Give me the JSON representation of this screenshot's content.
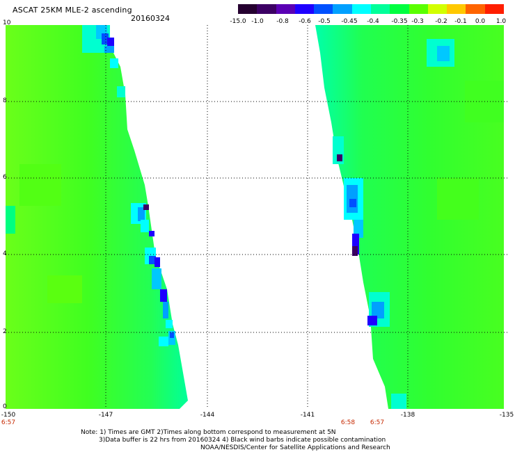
{
  "header": {
    "title": "ASCAT 25KM MLE-2 ascending",
    "date": "20160324"
  },
  "colorbar": {
    "labels": [
      "-15.0",
      "-1.0",
      "-0.8",
      "-0.6",
      "-0.5",
      "-0.45",
      "-0.4",
      "-0.35",
      "-0.3",
      "-0.2",
      "-0.1",
      "0.0",
      "1.0"
    ],
    "colors": [
      "#250030",
      "#3c0064",
      "#5a00b4",
      "#1e00ff",
      "#0050ff",
      "#00a0ff",
      "#00ffff",
      "#00ff9a",
      "#00ff40",
      "#5aff00",
      "#d2ff00",
      "#ffc800",
      "#ff6400",
      "#ff1e00"
    ]
  },
  "map": {
    "lat_labels": [
      "10",
      "8",
      "6",
      "4",
      "2",
      "0"
    ],
    "lon_labels": [
      "-150",
      "-147",
      "-144",
      "-141",
      "-138",
      "-135"
    ],
    "times": [
      "6:57",
      "6:58",
      "6:57"
    ]
  },
  "footer": {
    "note1": "Note: 1) Times are GMT 2)Times along bottom correspond to measurement at 5N",
    "note2": "3)Data buffer is 22 hrs from 20160324 4) Black wind barbs indicate possible contamination",
    "credit": "NOAA/NESDIS/Center for Satellite Applications and Research"
  }
}
